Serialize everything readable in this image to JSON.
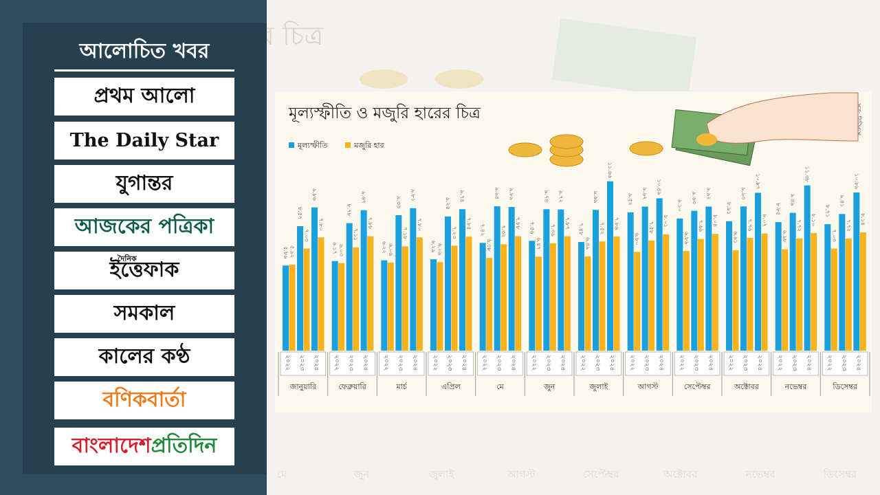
{
  "sidebar": {
    "title": "আলোচিত খবর",
    "logos": [
      {
        "text": "প্রথম আলো",
        "color": "#111111"
      },
      {
        "text": "The Daily Star",
        "color": "#111111"
      },
      {
        "text": "যুগান্তর",
        "color": "#111111"
      },
      {
        "text": "আজকের পত্রিকা",
        "color": "#0f5c4a"
      },
      {
        "text": "ইত্তেফাক",
        "sup": "দৈনিক",
        "color": "#111111"
      },
      {
        "text": "সমকাল",
        "color": "#111111"
      },
      {
        "text": "কালের কণ্ঠ",
        "color": "#111111"
      },
      {
        "text": "বণিকবার্তা",
        "color": "#f07a1a"
      },
      {
        "text": "বাংলাদেশ",
        "text2": "প্রতিদিন",
        "color": "#d4202a",
        "color2": "#1f8a3a"
      }
    ]
  },
  "backdrop": {
    "title_fragment": "র চিত্র",
    "labels": [
      "মে",
      "জুন",
      "জুলাই",
      "আগস্ট",
      "সেপ্টেম্বর",
      "অক্টোবর",
      "নভেম্বর",
      "ডিসেম্বর"
    ]
  },
  "chart_data": {
    "type": "grouped-bar",
    "title": "মূল্যস্ফীতি ও মজুরি হারের চিত্র",
    "source": "সূত্র: বিবিএস",
    "categories": [
      "জানুয়ারি",
      "ফেব্রুয়ারি",
      "মার্চ",
      "এপ্রিল",
      "মে",
      "জুন",
      "জুলাই",
      "আগস্ট",
      "সেপ্টেম্বর",
      "অক্টোবর",
      "নভেম্বর",
      "ডিসেম্বর"
    ],
    "groups": [
      "২০২২",
      "২০২৩",
      "২০২৪"
    ],
    "ylim": [
      0,
      12.5
    ],
    "series": [
      {
        "name": "মূল্যস্ফীতি",
        "color": "#1aa0dc",
        "values": [
          [
            5.86,
            8.57,
            9.86
          ],
          [
            6.17,
            8.78,
            9.67
          ],
          [
            6.22,
            9.33,
            9.81
          ],
          [
            6.29,
            9.24,
            9.74
          ],
          [
            7.42,
            9.94,
            9.89
          ],
          [
            7.56,
            9.74,
            9.72
          ],
          [
            7.48,
            9.69,
            11.66
          ],
          [
            9.52,
            9.92,
            10.49
          ],
          [
            9.1,
            9.63,
            9.92
          ],
          [
            8.91,
            9.93,
            10.87
          ],
          [
            8.85,
            9.49,
            11.38
          ],
          [
            8.71,
            9.41,
            10.89
          ]
        ],
        "value_labels": [
          [
            "৫.৮৬",
            "৮.৫৭",
            "৯.৮৬"
          ],
          [
            "৬.১৭",
            "৮.৭৮",
            "৯.৬৭"
          ],
          [
            "৬.২২",
            "৯.৩৩",
            "৯.৮১"
          ],
          [
            "৬.২৯",
            "৯.২৪",
            "৯.৭৪"
          ],
          [
            "৭.৪২",
            "৯.৯৪",
            "৯.৮৯"
          ],
          [
            "৭.৫৬",
            "৯.৭৪",
            "৯.৭২"
          ],
          [
            "৭.৪৮",
            "৯.৬৯",
            "১১.৬৬"
          ],
          [
            "৯.৫২",
            "৯.৯২",
            "১০.৪৯"
          ],
          [
            "৯.১০",
            "৯.৬৩",
            "৯.৯২"
          ],
          [
            "৮.৯১",
            "৯.৯৩",
            "১০.৮৭"
          ],
          [
            "৮.৮৫",
            "৯.৪৯",
            "১১.৩৮"
          ],
          [
            "৮.৭১",
            "৯.৪১",
            "১০.৮৯"
          ]
        ]
      },
      {
        "name": "মজুরি হার",
        "color": "#f7b21c",
        "values": [
          [
            5.92,
            7.03,
            7.8
          ],
          [
            6.03,
            7.11,
            7.88
          ],
          [
            6.06,
            7.18,
            7.8
          ],
          [
            6.09,
            7.23,
            7.85
          ],
          [
            6.38,
            7.32,
            7.88
          ],
          [
            6.47,
            7.39,
            7.87
          ],
          [
            6.49,
            7.52,
            7.86
          ],
          [
            6.8,
            7.58,
            8.01
          ],
          [
            6.86,
            7.69,
            8.04
          ],
          [
            6.91,
            7.76,
            8.07
          ],
          [
            6.98,
            7.72,
            8.1
          ],
          [
            7.03,
            7.72,
            8.14
          ]
        ],
        "value_labels": [
          [
            "৫.৯২",
            "৭.০৩",
            "৭.৮০"
          ],
          [
            "৬.০৩",
            "৭.১১",
            "৭.৮৮"
          ],
          [
            "৬.০৬",
            "৭.১৮",
            "৭.৮০"
          ],
          [
            "৬.০৯",
            "৭.২৩",
            "৭.৮৫"
          ],
          [
            "৬.৩৮",
            "৭.৩২",
            "৭.৮৮"
          ],
          [
            "৬.৪৭",
            "৭.৩৯",
            "৭.৮৭"
          ],
          [
            "৬.৪৯",
            "৭.৫২",
            "৭.৮৬"
          ],
          [
            "৬.৮০",
            "৭.৫৮",
            "৮.০১"
          ],
          [
            "৬.৮৬",
            "৭.৬৯",
            "৮.০৪"
          ],
          [
            "৬.৯১",
            "৭.৭৬",
            "৮.০৭"
          ],
          [
            "৬.৯৮",
            "৭.৭২",
            "৮.১০"
          ],
          [
            "৭.০৩",
            "৭.৭২",
            "৮.১৪"
          ]
        ]
      }
    ]
  }
}
